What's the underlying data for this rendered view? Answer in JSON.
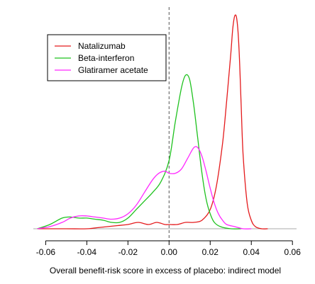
{
  "chart_data": {
    "type": "line",
    "title": "",
    "xlabel": "Overall benefit-risk score in excess of placebo: indirect model",
    "ylabel": "",
    "xlim": [
      -0.066,
      0.062
    ],
    "ylim": [
      0,
      1.0
    ],
    "x_ticks": [
      -0.06,
      -0.04,
      -0.02,
      0.0,
      0.02,
      0.04,
      0.06
    ],
    "x_tick_labels": [
      "-0.06",
      "-0.04",
      "-0.02",
      "0.00",
      "0.02",
      "0.04",
      "0.06"
    ],
    "grid": false,
    "y_axis_shown": false,
    "reference_line": {
      "x": 0.0,
      "style": "dashed",
      "color": "#555555"
    },
    "legend": {
      "placement": "top-left",
      "box": true
    },
    "series": [
      {
        "name": "Natalizumab",
        "color": "#e41a1c",
        "x": [
          -0.064,
          -0.05,
          -0.04,
          -0.035,
          -0.03,
          -0.025,
          -0.02,
          -0.015,
          -0.01,
          -0.006,
          -0.002,
          0.0,
          0.004,
          0.008,
          0.012,
          0.016,
          0.02,
          0.023,
          0.026,
          0.028,
          0.03,
          0.031,
          0.032,
          0.033,
          0.034,
          0.035,
          0.036,
          0.038,
          0.04,
          0.042,
          0.045,
          0.048
        ],
        "y": [
          0.0,
          0.0,
          0.0,
          0.005,
          0.01,
          0.015,
          0.02,
          0.03,
          0.02,
          0.03,
          0.02,
          0.02,
          0.02,
          0.03,
          0.03,
          0.04,
          0.09,
          0.2,
          0.4,
          0.6,
          0.82,
          0.94,
          1.0,
          0.98,
          0.85,
          0.6,
          0.35,
          0.12,
          0.04,
          0.01,
          0.0,
          0.0
        ]
      },
      {
        "name": "Beta-interferon",
        "color": "#1fc21f",
        "x": [
          -0.064,
          -0.058,
          -0.052,
          -0.048,
          -0.044,
          -0.04,
          -0.036,
          -0.032,
          -0.028,
          -0.024,
          -0.02,
          -0.016,
          -0.012,
          -0.008,
          -0.004,
          0.0,
          0.003,
          0.006,
          0.008,
          0.01,
          0.012,
          0.014,
          0.016,
          0.018,
          0.02,
          0.022,
          0.025,
          0.03,
          0.035
        ],
        "y": [
          0.0,
          0.02,
          0.05,
          0.055,
          0.05,
          0.05,
          0.045,
          0.04,
          0.03,
          0.03,
          0.05,
          0.09,
          0.13,
          0.17,
          0.22,
          0.32,
          0.5,
          0.66,
          0.72,
          0.7,
          0.58,
          0.42,
          0.26,
          0.14,
          0.07,
          0.03,
          0.01,
          0.0,
          0.0
        ]
      },
      {
        "name": "Glatiramer acetate",
        "color": "#ff28ff",
        "x": [
          -0.064,
          -0.058,
          -0.052,
          -0.048,
          -0.044,
          -0.04,
          -0.036,
          -0.032,
          -0.028,
          -0.024,
          -0.02,
          -0.016,
          -0.012,
          -0.008,
          -0.005,
          -0.002,
          0.0,
          0.003,
          0.006,
          0.009,
          0.012,
          0.014,
          0.016,
          0.018,
          0.02,
          0.022,
          0.024,
          0.026,
          0.028,
          0.032,
          0.036,
          0.04
        ],
        "y": [
          0.0,
          0.01,
          0.03,
          0.05,
          0.06,
          0.06,
          0.055,
          0.05,
          0.045,
          0.05,
          0.07,
          0.11,
          0.17,
          0.23,
          0.26,
          0.27,
          0.26,
          0.26,
          0.28,
          0.33,
          0.38,
          0.38,
          0.34,
          0.27,
          0.19,
          0.12,
          0.07,
          0.04,
          0.02,
          0.01,
          0.0,
          0.0
        ]
      }
    ]
  }
}
